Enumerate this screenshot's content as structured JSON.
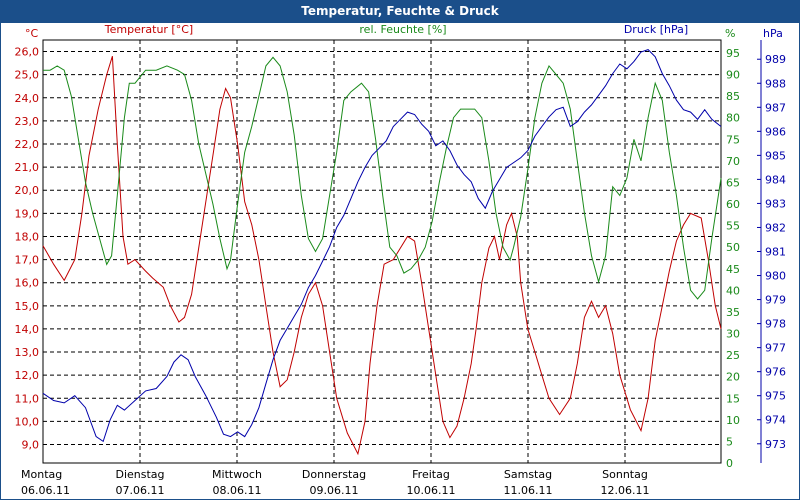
{
  "window": {
    "title": "Temperatur, Feuchte & Druck"
  },
  "chart_data": {
    "type": "line",
    "title": "Temperatur, Feuchte & Druck",
    "x_days": [
      {
        "day": "Montag",
        "date": "06.06.11"
      },
      {
        "day": "Dienstag",
        "date": "07.06.11"
      },
      {
        "day": "Mittwoch",
        "date": "08.06.11"
      },
      {
        "day": "Donnerstag",
        "date": "09.06.11"
      },
      {
        "day": "Freitag",
        "date": "10.06.11"
      },
      {
        "day": "Samstag",
        "date": "11.06.11"
      },
      {
        "day": "Sonntag",
        "date": "12.06.11"
      }
    ],
    "axes": {
      "temp": {
        "unit": "°C",
        "label": "Temperatur [°C]",
        "ylim": [
          8.2,
          26.5
        ],
        "ticks": [
          "9,0",
          "10,0",
          "11,0",
          "12,0",
          "13,0",
          "14,0",
          "15,0",
          "16,0",
          "17,0",
          "18,0",
          "19,0",
          "20,0",
          "21,0",
          "22,0",
          "23,0",
          "24,0",
          "25,0",
          "26,0"
        ],
        "color": "#c00000"
      },
      "hum": {
        "unit": "%",
        "label": "rel. Feuchte [%]",
        "ylim": [
          0,
          98
        ],
        "ticks": [
          "0",
          "5",
          "10",
          "15",
          "20",
          "25",
          "30",
          "35",
          "40",
          "45",
          "50",
          "55",
          "60",
          "65",
          "70",
          "75",
          "80",
          "85",
          "90",
          "95"
        ],
        "color": "#1a8a1a"
      },
      "press": {
        "unit": "hPa",
        "label": "Druck [hPa]",
        "ylim": [
          972.2,
          989.8
        ],
        "ticks": [
          "973",
          "974",
          "975",
          "976",
          "977",
          "978",
          "979",
          "980",
          "981",
          "982",
          "983",
          "984",
          "985",
          "986",
          "987",
          "988",
          "989"
        ],
        "color": "#0000aa"
      }
    },
    "grid": true,
    "x_range_days": [
      0,
      7.3
    ],
    "series": [
      {
        "name": "Temperatur [°C]",
        "axis": "temp",
        "color": "#c00000",
        "points": [
          [
            0,
            17.6
          ],
          [
            0.15,
            16.8
          ],
          [
            0.3,
            16.1
          ],
          [
            0.45,
            17.0
          ],
          [
            0.55,
            19.0
          ],
          [
            0.65,
            21.5
          ],
          [
            0.78,
            23.5
          ],
          [
            0.9,
            25.0
          ],
          [
            0.98,
            25.8
          ],
          [
            1.05,
            22.0
          ],
          [
            1.13,
            18.0
          ],
          [
            1.2,
            16.8
          ],
          [
            1.3,
            17.0
          ],
          [
            1.45,
            16.5
          ],
          [
            1.55,
            16.2
          ],
          [
            1.7,
            15.8
          ],
          [
            1.8,
            15.0
          ],
          [
            1.92,
            14.3
          ],
          [
            2.0,
            14.5
          ],
          [
            2.1,
            15.5
          ],
          [
            2.2,
            17.5
          ],
          [
            2.3,
            19.5
          ],
          [
            2.4,
            21.5
          ],
          [
            2.5,
            23.5
          ],
          [
            2.58,
            24.4
          ],
          [
            2.65,
            24.0
          ],
          [
            2.75,
            22.0
          ],
          [
            2.85,
            19.5
          ],
          [
            2.95,
            18.5
          ],
          [
            3.05,
            17.0
          ],
          [
            3.15,
            15.0
          ],
          [
            3.25,
            13.0
          ],
          [
            3.35,
            11.5
          ],
          [
            3.45,
            11.8
          ],
          [
            3.55,
            13.0
          ],
          [
            3.65,
            14.5
          ],
          [
            3.75,
            15.5
          ],
          [
            3.85,
            16.0
          ],
          [
            3.95,
            15.0
          ],
          [
            4.05,
            13.0
          ],
          [
            4.15,
            11.0
          ],
          [
            4.3,
            9.5
          ],
          [
            4.45,
            8.6
          ],
          [
            4.55,
            10.0
          ],
          [
            4.62,
            12.5
          ],
          [
            4.72,
            15.0
          ],
          [
            4.82,
            16.8
          ],
          [
            4.95,
            17.0
          ],
          [
            5.05,
            17.5
          ],
          [
            5.15,
            18.0
          ],
          [
            5.25,
            17.8
          ],
          [
            5.35,
            16.0
          ],
          [
            5.45,
            14.0
          ],
          [
            5.55,
            12.0
          ],
          [
            5.65,
            10.0
          ],
          [
            5.75,
            9.3
          ],
          [
            5.85,
            9.8
          ],
          [
            5.95,
            11.0
          ],
          [
            6.05,
            12.5
          ],
          [
            6.12,
            14.0
          ],
          [
            6.2,
            16.0
          ],
          [
            6.3,
            17.5
          ],
          [
            6.38,
            18.0
          ],
          [
            6.45,
            17.0
          ],
          [
            6.55,
            18.5
          ],
          [
            6.62,
            19.0
          ],
          [
            6.7,
            18.0
          ],
          [
            6.75,
            16.0
          ],
          [
            6.85,
            14.0
          ],
          [
            6.95,
            13.0
          ],
          [
            7.05,
            12.0
          ],
          [
            7.15,
            11.0
          ],
          [
            7.3,
            10.3
          ],
          [
            7.45,
            11.0
          ],
          [
            7.55,
            12.5
          ],
          [
            7.65,
            14.5
          ],
          [
            7.75,
            15.2
          ],
          [
            7.85,
            14.5
          ],
          [
            7.95,
            15.0
          ],
          [
            8.05,
            13.8
          ],
          [
            8.15,
            12.0
          ],
          [
            8.3,
            10.5
          ],
          [
            8.45,
            9.6
          ],
          [
            8.55,
            11.0
          ],
          [
            8.65,
            13.5
          ],
          [
            8.75,
            15.0
          ],
          [
            8.85,
            16.5
          ],
          [
            8.95,
            17.8
          ],
          [
            9.05,
            18.5
          ],
          [
            9.15,
            19.0
          ],
          [
            9.3,
            18.8
          ],
          [
            9.4,
            17.0
          ],
          [
            9.5,
            15.0
          ],
          [
            9.58,
            14.0
          ]
        ]
      },
      {
        "name": "rel. Feuchte [%]",
        "axis": "hum",
        "color": "#1a8a1a",
        "points": [
          [
            0,
            91
          ],
          [
            0.1,
            91
          ],
          [
            0.2,
            92
          ],
          [
            0.3,
            91
          ],
          [
            0.4,
            85
          ],
          [
            0.5,
            75
          ],
          [
            0.6,
            65
          ],
          [
            0.7,
            58
          ],
          [
            0.8,
            52
          ],
          [
            0.9,
            46
          ],
          [
            0.97,
            48
          ],
          [
            1.05,
            62
          ],
          [
            1.15,
            80
          ],
          [
            1.22,
            88
          ],
          [
            1.3,
            88
          ],
          [
            1.45,
            91
          ],
          [
            1.6,
            91
          ],
          [
            1.75,
            92
          ],
          [
            1.9,
            91
          ],
          [
            2.0,
            90
          ],
          [
            2.1,
            84
          ],
          [
            2.2,
            74
          ],
          [
            2.3,
            67
          ],
          [
            2.4,
            60
          ],
          [
            2.5,
            52
          ],
          [
            2.6,
            45
          ],
          [
            2.65,
            47
          ],
          [
            2.75,
            60
          ],
          [
            2.85,
            72
          ],
          [
            2.95,
            78
          ],
          [
            3.05,
            85
          ],
          [
            3.15,
            92
          ],
          [
            3.25,
            94
          ],
          [
            3.35,
            92
          ],
          [
            3.45,
            86
          ],
          [
            3.55,
            76
          ],
          [
            3.65,
            62
          ],
          [
            3.75,
            52
          ],
          [
            3.85,
            49
          ],
          [
            3.95,
            52
          ],
          [
            4.05,
            62
          ],
          [
            4.15,
            72
          ],
          [
            4.25,
            84
          ],
          [
            4.35,
            86
          ],
          [
            4.5,
            88
          ],
          [
            4.6,
            86
          ],
          [
            4.7,
            75
          ],
          [
            4.8,
            62
          ],
          [
            4.9,
            50
          ],
          [
            5.0,
            48
          ],
          [
            5.1,
            44
          ],
          [
            5.2,
            45
          ],
          [
            5.3,
            47
          ],
          [
            5.4,
            50
          ],
          [
            5.5,
            56
          ],
          [
            5.6,
            65
          ],
          [
            5.7,
            73
          ],
          [
            5.8,
            80
          ],
          [
            5.9,
            82
          ],
          [
            6.0,
            82
          ],
          [
            6.1,
            82
          ],
          [
            6.2,
            80
          ],
          [
            6.3,
            70
          ],
          [
            6.4,
            58
          ],
          [
            6.5,
            50
          ],
          [
            6.6,
            47
          ],
          [
            6.65,
            50
          ],
          [
            6.75,
            57
          ],
          [
            6.85,
            68
          ],
          [
            6.95,
            80
          ],
          [
            7.05,
            88
          ],
          [
            7.15,
            92
          ],
          [
            7.25,
            90
          ],
          [
            7.35,
            88
          ],
          [
            7.45,
            82
          ],
          [
            7.55,
            70
          ],
          [
            7.65,
            58
          ],
          [
            7.75,
            48
          ],
          [
            7.85,
            42
          ],
          [
            7.95,
            48
          ],
          [
            8.05,
            64
          ],
          [
            8.15,
            62
          ],
          [
            8.25,
            66
          ],
          [
            8.35,
            75
          ],
          [
            8.45,
            70
          ],
          [
            8.55,
            80
          ],
          [
            8.65,
            88
          ],
          [
            8.75,
            84
          ],
          [
            8.85,
            72
          ],
          [
            8.95,
            62
          ],
          [
            9.05,
            50
          ],
          [
            9.15,
            40
          ],
          [
            9.25,
            38
          ],
          [
            9.35,
            40
          ],
          [
            9.45,
            52
          ],
          [
            9.58,
            66
          ]
        ]
      },
      {
        "name": "Druck [hPa]",
        "axis": "press",
        "color": "#0000aa",
        "points": [
          [
            0,
            975.1
          ],
          [
            0.15,
            974.8
          ],
          [
            0.3,
            974.7
          ],
          [
            0.45,
            975.0
          ],
          [
            0.6,
            974.5
          ],
          [
            0.75,
            973.3
          ],
          [
            0.85,
            973.1
          ],
          [
            0.95,
            974.0
          ],
          [
            1.05,
            974.6
          ],
          [
            1.15,
            974.4
          ],
          [
            1.3,
            974.8
          ],
          [
            1.45,
            975.2
          ],
          [
            1.6,
            975.3
          ],
          [
            1.75,
            975.8
          ],
          [
            1.85,
            976.4
          ],
          [
            1.95,
            976.7
          ],
          [
            2.05,
            976.5
          ],
          [
            2.15,
            975.8
          ],
          [
            2.3,
            975.0
          ],
          [
            2.45,
            974.1
          ],
          [
            2.55,
            973.4
          ],
          [
            2.65,
            973.3
          ],
          [
            2.75,
            973.5
          ],
          [
            2.85,
            973.3
          ],
          [
            2.95,
            973.8
          ],
          [
            3.05,
            974.5
          ],
          [
            3.15,
            975.5
          ],
          [
            3.25,
            976.5
          ],
          [
            3.35,
            977.3
          ],
          [
            3.45,
            977.8
          ],
          [
            3.55,
            978.3
          ],
          [
            3.65,
            978.8
          ],
          [
            3.75,
            979.5
          ],
          [
            3.85,
            980.0
          ],
          [
            3.95,
            980.6
          ],
          [
            4.05,
            981.2
          ],
          [
            4.15,
            982.0
          ],
          [
            4.25,
            982.5
          ],
          [
            4.35,
            983.2
          ],
          [
            4.45,
            983.9
          ],
          [
            4.55,
            984.5
          ],
          [
            4.65,
            985.0
          ],
          [
            4.75,
            985.3
          ],
          [
            4.85,
            985.6
          ],
          [
            4.95,
            986.2
          ],
          [
            5.05,
            986.5
          ],
          [
            5.15,
            986.8
          ],
          [
            5.25,
            986.7
          ],
          [
            5.35,
            986.3
          ],
          [
            5.45,
            986.0
          ],
          [
            5.55,
            985.4
          ],
          [
            5.65,
            985.6
          ],
          [
            5.75,
            985.2
          ],
          [
            5.85,
            984.6
          ],
          [
            5.95,
            984.2
          ],
          [
            6.05,
            983.9
          ],
          [
            6.15,
            983.2
          ],
          [
            6.25,
            982.8
          ],
          [
            6.35,
            983.5
          ],
          [
            6.45,
            984.0
          ],
          [
            6.55,
            984.5
          ],
          [
            6.65,
            984.7
          ],
          [
            6.75,
            984.9
          ],
          [
            6.85,
            985.2
          ],
          [
            6.95,
            985.8
          ],
          [
            7.05,
            986.2
          ],
          [
            7.15,
            986.6
          ],
          [
            7.25,
            986.9
          ],
          [
            7.35,
            987.0
          ],
          [
            7.45,
            986.2
          ],
          [
            7.55,
            986.4
          ],
          [
            7.65,
            986.8
          ],
          [
            7.75,
            987.1
          ],
          [
            7.85,
            987.5
          ],
          [
            7.95,
            987.9
          ],
          [
            8.05,
            988.4
          ],
          [
            8.15,
            988.8
          ],
          [
            8.25,
            988.6
          ],
          [
            8.35,
            988.9
          ],
          [
            8.45,
            989.3
          ],
          [
            8.55,
            989.4
          ],
          [
            8.65,
            989.1
          ],
          [
            8.75,
            988.4
          ],
          [
            8.85,
            987.9
          ],
          [
            8.95,
            987.3
          ],
          [
            9.05,
            986.9
          ],
          [
            9.15,
            986.8
          ],
          [
            9.25,
            986.5
          ],
          [
            9.35,
            986.9
          ],
          [
            9.45,
            986.5
          ],
          [
            9.58,
            986.2
          ]
        ]
      }
    ]
  }
}
